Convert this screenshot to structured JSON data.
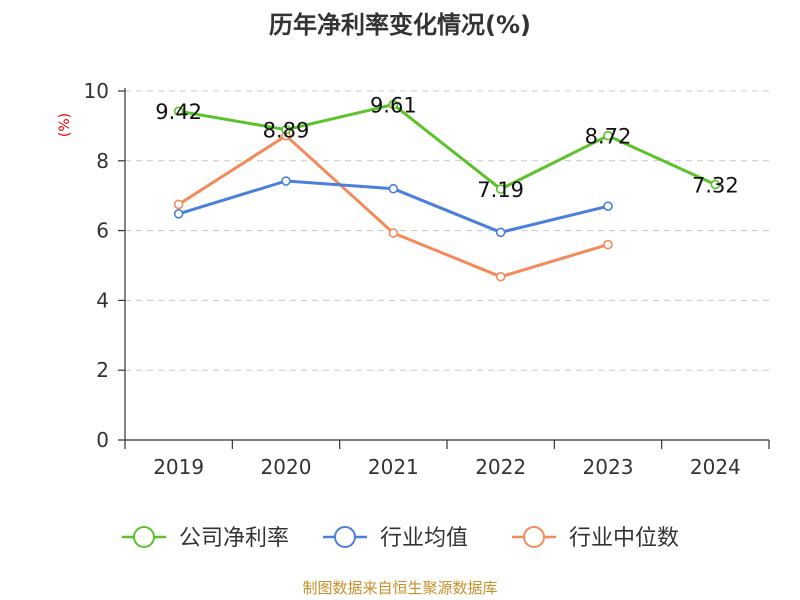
{
  "chart_data": {
    "type": "line",
    "title": "历年净利率变化情况(%)",
    "y_unit_label": "(%)",
    "categories": [
      "2019",
      "2020",
      "2021",
      "2022",
      "2023",
      "2024"
    ],
    "ylim": [
      0,
      10
    ],
    "y_ticks": [
      0,
      2,
      4,
      6,
      8,
      10
    ],
    "grid": true,
    "legend_position": "bottom",
    "series": [
      {
        "name": "公司净利率",
        "color": "#5cc22a",
        "values": [
          9.42,
          8.89,
          9.61,
          7.19,
          8.72,
          7.32
        ],
        "data_labels": [
          "9.42",
          "8.89",
          "9.61",
          "7.19",
          "8.72",
          "7.32"
        ]
      },
      {
        "name": "行业均值",
        "color": "#4b7fdc",
        "values": [
          6.48,
          7.42,
          7.2,
          5.95,
          6.7,
          null
        ]
      },
      {
        "name": "行业中位数",
        "color": "#f48a5a",
        "values": [
          6.75,
          8.72,
          5.93,
          4.68,
          5.6,
          null
        ]
      }
    ]
  },
  "source_text": "制图数据来自恒生聚源数据库"
}
